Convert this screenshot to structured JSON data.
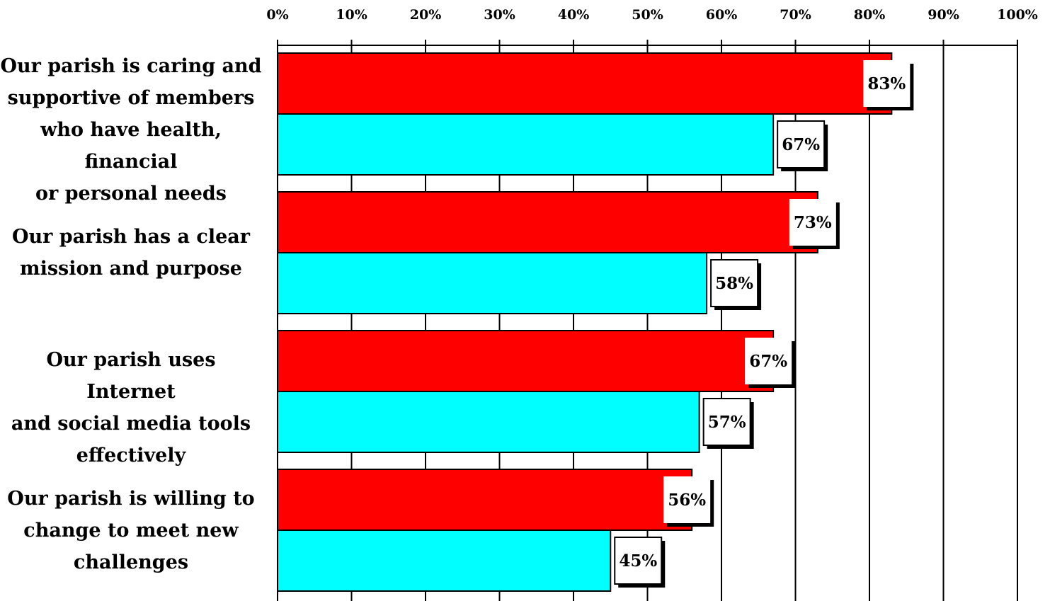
{
  "chart_data": {
    "type": "bar",
    "orientation": "horizontal",
    "title": "",
    "xlabel": "",
    "ylabel": "",
    "xlim": [
      0,
      100
    ],
    "x_ticks": [
      "0%",
      "10%",
      "20%",
      "30%",
      "40%",
      "50%",
      "60%",
      "70%",
      "80%",
      "90%",
      "100%"
    ],
    "categories": [
      [
        "Our parish is caring and",
        "supportive of members",
        "who have health, financial",
        "or personal needs"
      ],
      [
        "Our parish has a clear",
        "mission and purpose"
      ],
      [
        "Our parish uses Internet",
        "and social media tools",
        "effectively"
      ],
      [
        "Our parish is willing to",
        "change to meet new",
        "challenges"
      ]
    ],
    "series": [
      {
        "color": "#ff0000",
        "values": [
          83,
          73,
          67,
          56
        ],
        "labels": [
          "83%",
          "73%",
          "67%",
          "56%"
        ]
      },
      {
        "color": "#00ffff",
        "values": [
          67,
          58,
          57,
          45
        ],
        "labels": [
          "67%",
          "58%",
          "57%",
          "45%"
        ]
      }
    ],
    "grid": true,
    "legend": "none"
  }
}
